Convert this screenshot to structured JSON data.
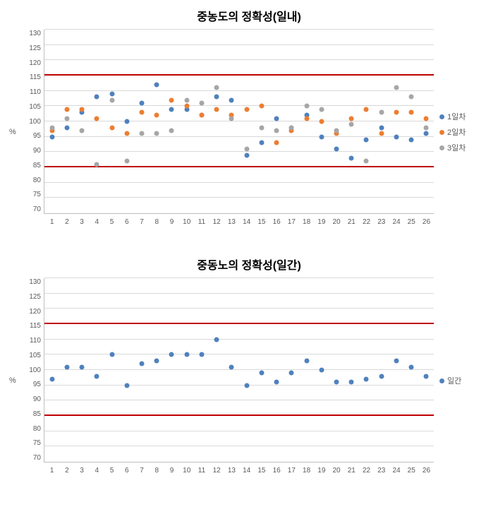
{
  "charts": [
    {
      "title": "중농도의 정확성(일내)",
      "y_label": "%",
      "y_min": 70,
      "y_max": 130,
      "y_step": 5,
      "x_min": 1,
      "x_max": 26,
      "ref_lines": [
        85,
        115
      ],
      "ref_color": "#c00000",
      "background_color": "#ffffff",
      "grid_color": "#d9d9d9",
      "axis_color": "#bfbfbf",
      "title_fontsize": 16,
      "tick_fontsize": 10,
      "legend_fontsize": 11,
      "marker_size": 7,
      "series_colors": {
        "s1": "#4f81bd",
        "s2": "#ed7d31",
        "s3": "#a6a6a6"
      },
      "series": [
        {
          "key": "s1",
          "name": "1일차",
          "data": [
            95,
            98,
            103,
            108,
            109,
            100,
            106,
            112,
            104,
            104,
            102,
            108,
            107,
            89,
            93,
            101,
            98,
            102,
            95,
            91,
            88,
            94,
            98,
            95,
            94,
            96
          ]
        },
        {
          "key": "s2",
          "name": "2일차",
          "data": [
            97,
            104,
            104,
            101,
            98,
            96,
            103,
            102,
            107,
            105,
            102,
            104,
            102,
            104,
            105,
            93,
            97,
            101,
            100,
            96,
            101,
            104,
            96,
            103,
            103,
            101
          ]
        },
        {
          "key": "s3",
          "name": "3일차",
          "data": [
            98,
            101,
            97,
            86,
            107,
            87,
            96,
            96,
            97,
            107,
            106,
            111,
            101,
            91,
            98,
            97,
            98,
            105,
            104,
            97,
            99,
            87,
            103,
            111,
            108,
            98
          ]
        }
      ]
    },
    {
      "title": "중동노의 정확성(일간)",
      "y_label": "%",
      "y_min": 70,
      "y_max": 130,
      "y_step": 5,
      "x_min": 1,
      "x_max": 26,
      "ref_lines": [
        85,
        115
      ],
      "ref_color": "#c00000",
      "background_color": "#ffffff",
      "grid_color": "#d9d9d9",
      "axis_color": "#bfbfbf",
      "title_fontsize": 16,
      "tick_fontsize": 10,
      "legend_fontsize": 11,
      "marker_size": 7,
      "series_colors": {
        "s1": "#4f81bd"
      },
      "series": [
        {
          "key": "s1",
          "name": "일간",
          "data": [
            97,
            101,
            101,
            98,
            105,
            95,
            102,
            103,
            105,
            105,
            105,
            110,
            101,
            95,
            99,
            96,
            99,
            103,
            100,
            96,
            96,
            97,
            98,
            103,
            101,
            98
          ]
        }
      ]
    }
  ]
}
